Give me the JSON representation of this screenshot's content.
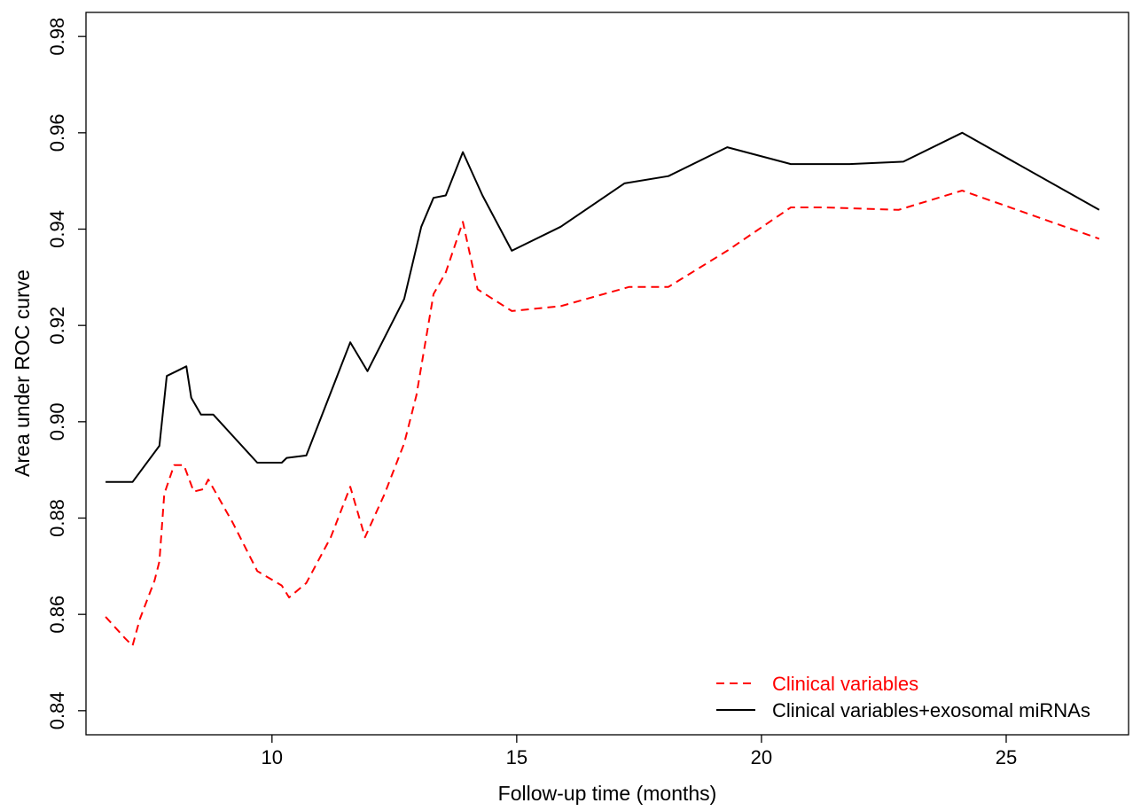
{
  "chart_data": {
    "type": "line",
    "title": "",
    "xlabel": "Follow-up time (months)",
    "ylabel": "Area under ROC curve",
    "xlim": [
      6.2,
      27.5
    ],
    "ylim": [
      0.835,
      0.985
    ],
    "xticks": [
      10,
      15,
      20,
      25
    ],
    "yticks": [
      0.84,
      0.86,
      0.88,
      0.9,
      0.92,
      0.94,
      0.96,
      0.98
    ],
    "xtick_labels": [
      "10",
      "15",
      "20",
      "25"
    ],
    "ytick_labels": [
      "0.84",
      "0.86",
      "0.88",
      "0.90",
      "0.92",
      "0.94",
      "0.96",
      "0.98"
    ],
    "grid": false,
    "legend": "bottom-right",
    "series": [
      {
        "name": "Clinical variables",
        "color": "#ff0000",
        "dash": "dashed",
        "x": [
          6.6,
          7.0,
          7.15,
          7.3,
          7.6,
          7.7,
          7.8,
          8.0,
          8.2,
          8.4,
          8.6,
          8.7,
          9.2,
          9.7,
          10.2,
          10.35,
          10.7,
          11.2,
          11.6,
          11.9,
          12.3,
          12.7,
          12.95,
          13.3,
          13.55,
          13.9,
          14.2,
          14.9,
          15.9,
          17.3,
          18.1,
          19.3,
          20.6,
          21.3,
          22.8,
          24.1,
          26.9
        ],
        "y": [
          0.8595,
          0.855,
          0.8535,
          0.859,
          0.867,
          0.871,
          0.885,
          0.891,
          0.891,
          0.8855,
          0.886,
          0.888,
          0.879,
          0.869,
          0.866,
          0.8635,
          0.8665,
          0.876,
          0.8865,
          0.876,
          0.885,
          0.8955,
          0.9055,
          0.9265,
          0.931,
          0.9415,
          0.9275,
          0.923,
          0.924,
          0.928,
          0.928,
          0.9355,
          0.9445,
          0.9445,
          0.944,
          0.948,
          0.938
        ]
      },
      {
        "name": "Clinical variables+exosomal miRNAs",
        "color": "#000000",
        "dash": "solid",
        "x": [
          6.6,
          7.15,
          7.7,
          7.85,
          8.05,
          8.25,
          8.35,
          8.55,
          8.8,
          9.7,
          10.2,
          10.3,
          10.7,
          11.6,
          11.95,
          12.7,
          13.05,
          13.3,
          13.55,
          13.9,
          14.3,
          14.9,
          15.9,
          17.2,
          18.1,
          19.3,
          20.6,
          21.8,
          22.9,
          24.1,
          26.9
        ],
        "y": [
          0.8875,
          0.8875,
          0.895,
          0.9095,
          0.9105,
          0.9115,
          0.905,
          0.9015,
          0.9015,
          0.8915,
          0.8915,
          0.8925,
          0.893,
          0.9165,
          0.9105,
          0.9255,
          0.9405,
          0.9465,
          0.947,
          0.956,
          0.947,
          0.9355,
          0.9405,
          0.9495,
          0.951,
          0.957,
          0.9535,
          0.9535,
          0.954,
          0.96,
          0.944
        ]
      }
    ]
  }
}
